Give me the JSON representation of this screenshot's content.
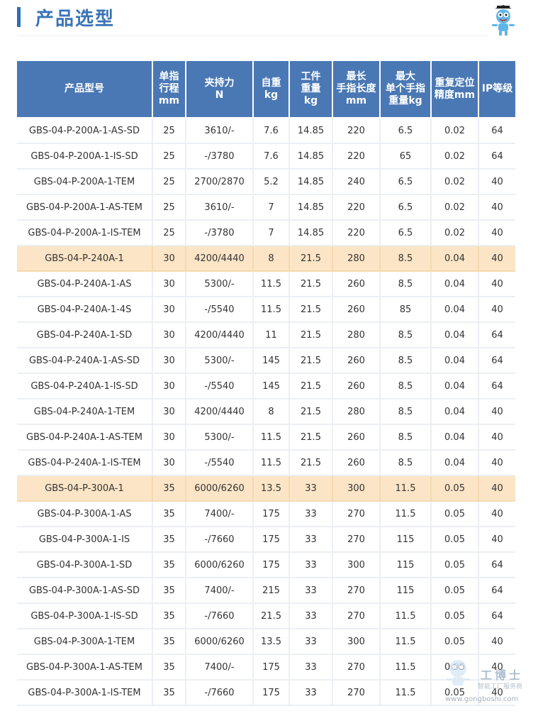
{
  "page": {
    "title": "产品选型"
  },
  "header": [
    "产品型号",
    "单指|行程|mm",
    "夹持力|N",
    "自重|kg",
    "工件|重量|kg",
    "最长|手指长度|mm",
    "最大|单个手指|重量kg",
    "重复定位|精度mm",
    "IP等级"
  ],
  "rows": [
    {
      "hl": false,
      "cells": [
        "GBS-04-P-200A-1-AS-SD",
        "25",
        "3610/-",
        "7.6",
        "14.85",
        "220",
        "6.5",
        "0.02",
        "64"
      ]
    },
    {
      "hl": false,
      "cells": [
        "GBS-04-P-200A-1-IS-SD",
        "25",
        "-/3780",
        "7.6",
        "14.85",
        "220",
        "65",
        "0.02",
        "64"
      ]
    },
    {
      "hl": false,
      "cells": [
        "GBS-04-P-200A-1-TEM",
        "25",
        "2700/2870",
        "5.2",
        "14.85",
        "240",
        "6.5",
        "0.02",
        "40"
      ]
    },
    {
      "hl": false,
      "cells": [
        "GBS-04-P-200A-1-AS-TEM",
        "25",
        "3610/-",
        "7",
        "14.85",
        "220",
        "6.5",
        "0.02",
        "40"
      ]
    },
    {
      "hl": false,
      "cells": [
        "GBS-04-P-200A-1-IS-TEM",
        "25",
        "-/3780",
        "7",
        "14.85",
        "220",
        "6.5",
        "0.02",
        "40"
      ]
    },
    {
      "hl": true,
      "cells": [
        "GBS-04-P-240A-1",
        "30",
        "4200/4440",
        "8",
        "21.5",
        "280",
        "8.5",
        "0.04",
        "40"
      ]
    },
    {
      "hl": false,
      "cells": [
        "GBS-04-P-240A-1-AS",
        "30",
        "5300/-",
        "11.5",
        "21.5",
        "260",
        "8.5",
        "0.04",
        "40"
      ]
    },
    {
      "hl": false,
      "cells": [
        "GBS-04-P-240A-1-4S",
        "30",
        "-/5540",
        "11.5",
        "21.5",
        "260",
        "85",
        "0.04",
        "40"
      ]
    },
    {
      "hl": false,
      "cells": [
        "GBS-04-P-240A-1-SD",
        "30",
        "4200/4440",
        "11",
        "21.5",
        "280",
        "8.5",
        "0.04",
        "64"
      ]
    },
    {
      "hl": false,
      "cells": [
        "GBS-04-P-240A-1-AS-SD",
        "30",
        "5300/-",
        "145",
        "21.5",
        "260",
        "8.5",
        "0.04",
        "64"
      ]
    },
    {
      "hl": false,
      "cells": [
        "GBS-04-P-240A-1-IS-SD",
        "30",
        "-/5540",
        "145",
        "21.5",
        "260",
        "8.5",
        "0.04",
        "64"
      ]
    },
    {
      "hl": false,
      "cells": [
        "GBS-04-P-240A-1-TEM",
        "30",
        "4200/4440",
        "8",
        "21.5",
        "280",
        "8.5",
        "0.04",
        "40"
      ]
    },
    {
      "hl": false,
      "cells": [
        "GBS-04-P-240A-1-AS-TEM",
        "30",
        "5300/-",
        "11.5",
        "21.5",
        "260",
        "8.5",
        "0.04",
        "40"
      ]
    },
    {
      "hl": false,
      "cells": [
        "GBS-04-P-240A-1-IS-TEM",
        "30",
        "-/5540",
        "11.5",
        "21.5",
        "260",
        "8.5",
        "0.04",
        "40"
      ]
    },
    {
      "hl": true,
      "cells": [
        "GBS-04-P-300A-1",
        "35",
        "6000/6260",
        "13.5",
        "33",
        "300",
        "11.5",
        "0.05",
        "40"
      ]
    },
    {
      "hl": false,
      "cells": [
        "GBS-04-P-300A-1-AS",
        "35",
        "7400/-",
        "175",
        "33",
        "270",
        "11.5",
        "0.05",
        "40"
      ]
    },
    {
      "hl": false,
      "cells": [
        "GBS-04-P-300A-1-IS",
        "35",
        "-/7660",
        "175",
        "33",
        "270",
        "115",
        "0.05",
        "40"
      ]
    },
    {
      "hl": false,
      "cells": [
        "GBS-04-P-300A-1-SD",
        "35",
        "6000/6260",
        "175",
        "33",
        "300",
        "115",
        "0.05",
        "64"
      ]
    },
    {
      "hl": false,
      "cells": [
        "GBS-04-P-300A-1-AS-SD",
        "35",
        "7400/-",
        "215",
        "33",
        "270",
        "115",
        "0.05",
        "64"
      ]
    },
    {
      "hl": false,
      "cells": [
        "GBS-04-P-300A-1-IS-SD",
        "35",
        "-/7660",
        "21.5",
        "33",
        "270",
        "11.5",
        "0.05",
        "64"
      ]
    },
    {
      "hl": false,
      "cells": [
        "GBS-04-P-300A-1-TEM",
        "35",
        "6000/6260",
        "13.5",
        "33",
        "300",
        "11.5",
        "0.05",
        "40"
      ]
    },
    {
      "hl": false,
      "cells": [
        "GBS-04-P-300A-1-AS-TEM",
        "35",
        "7400/-",
        "175",
        "33",
        "270",
        "11.5",
        "0.05",
        "40"
      ]
    },
    {
      "hl": false,
      "cells": [
        "GBS-04-P-300A-1-IS-TEM",
        "35",
        "-/7660",
        "175",
        "33",
        "270",
        "11.5",
        "0.05",
        "40"
      ]
    }
  ],
  "watermark": {
    "brand": "工博士",
    "tagline": "智能工厂服务商",
    "url": "www.gongboshi.com"
  },
  "icons": {
    "mascot": "robot-mascot-icon",
    "watermark_logo": "robot-logo-icon"
  },
  "colors": {
    "accent": "#3a73b7",
    "header_bg": "#4a78b4",
    "highlight_row": "#fbe5c6"
  }
}
